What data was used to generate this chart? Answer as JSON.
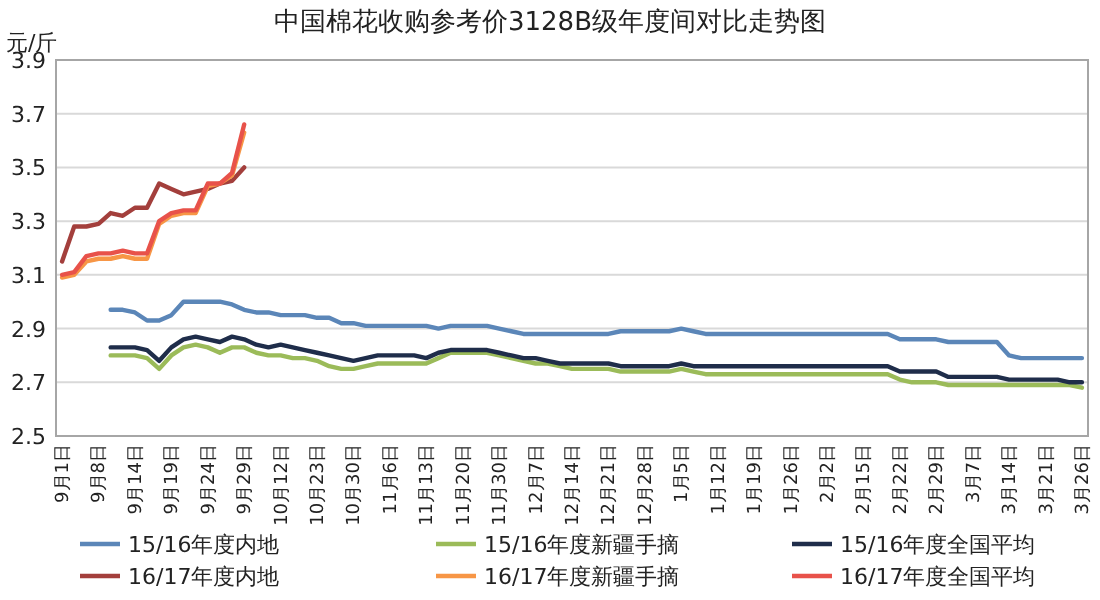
{
  "chart_data": {
    "type": "line",
    "title": "中国棉花收购参考价3128B级年度间对比走势图",
    "ylabel": "元/斤",
    "categories": [
      "9月1日",
      null,
      null,
      "9月8日",
      null,
      null,
      "9月14日",
      null,
      null,
      "9月19日",
      null,
      null,
      "9月24日",
      null,
      null,
      "9月29日",
      null,
      null,
      "10月12日",
      null,
      null,
      "10月23日",
      null,
      null,
      "10月30日",
      null,
      null,
      "11月6日",
      null,
      null,
      "11月13日",
      null,
      null,
      "11月20日",
      null,
      null,
      "11月30日",
      null,
      null,
      "12月7日",
      null,
      null,
      "12月14日",
      null,
      null,
      "12月21日",
      null,
      null,
      "12月28日",
      null,
      null,
      "1月5日",
      null,
      null,
      "1月12日",
      null,
      null,
      "1月19日",
      null,
      null,
      "1月26日",
      null,
      null,
      "2月2日",
      null,
      null,
      "2月15日",
      null,
      null,
      "2月22日",
      null,
      null,
      "2月29日",
      null,
      null,
      "3月7日",
      null,
      null,
      "3月14日",
      null,
      null,
      "3月21日",
      null,
      null,
      "3月26日"
    ],
    "ylim": [
      2.5,
      3.9
    ],
    "yticks": [
      2.5,
      2.7,
      2.9,
      3.1,
      3.3,
      3.5,
      3.7,
      3.9
    ],
    "grid": "y",
    "legend": "bottom",
    "line_style": "solid",
    "marker": "none",
    "series": [
      {
        "name": "15/16年度内地",
        "color": "#5b86b8",
        "values": [
          null,
          null,
          null,
          null,
          2.97,
          2.97,
          2.96,
          2.93,
          2.93,
          2.95,
          3.0,
          3.0,
          3.0,
          3.0,
          2.99,
          2.97,
          2.96,
          2.96,
          2.95,
          2.95,
          2.95,
          2.94,
          2.94,
          2.92,
          2.92,
          2.91,
          2.91,
          2.91,
          2.91,
          2.91,
          2.91,
          2.9,
          2.91,
          2.91,
          2.91,
          2.91,
          2.9,
          2.89,
          2.88,
          2.88,
          2.88,
          2.88,
          2.88,
          2.88,
          2.88,
          2.88,
          2.89,
          2.89,
          2.89,
          2.89,
          2.89,
          2.9,
          2.89,
          2.88,
          2.88,
          2.88,
          2.88,
          2.88,
          2.88,
          2.88,
          2.88,
          2.88,
          2.88,
          2.88,
          2.88,
          2.88,
          2.88,
          2.88,
          2.88,
          2.86,
          2.86,
          2.86,
          2.86,
          2.85,
          2.85,
          2.85,
          2.85,
          2.85,
          2.8,
          2.79,
          2.79,
          2.79,
          2.79,
          2.79,
          2.79
        ]
      },
      {
        "name": "15/16年度新疆手摘",
        "color": "#9bbb59",
        "values": [
          null,
          null,
          null,
          null,
          2.8,
          2.8,
          2.8,
          2.79,
          2.75,
          2.8,
          2.83,
          2.84,
          2.83,
          2.81,
          2.83,
          2.83,
          2.81,
          2.8,
          2.8,
          2.79,
          2.79,
          2.78,
          2.76,
          2.75,
          2.75,
          2.76,
          2.77,
          2.77,
          2.77,
          2.77,
          2.77,
          2.79,
          2.81,
          2.81,
          2.81,
          2.81,
          2.8,
          2.79,
          2.78,
          2.77,
          2.77,
          2.76,
          2.75,
          2.75,
          2.75,
          2.75,
          2.74,
          2.74,
          2.74,
          2.74,
          2.74,
          2.75,
          2.74,
          2.73,
          2.73,
          2.73,
          2.73,
          2.73,
          2.73,
          2.73,
          2.73,
          2.73,
          2.73,
          2.73,
          2.73,
          2.73,
          2.73,
          2.73,
          2.73,
          2.71,
          2.7,
          2.7,
          2.7,
          2.69,
          2.69,
          2.69,
          2.69,
          2.69,
          2.69,
          2.69,
          2.69,
          2.69,
          2.69,
          2.69,
          2.68
        ]
      },
      {
        "name": "15/16年度全国平均",
        "color": "#1f2d4a",
        "values": [
          null,
          null,
          null,
          null,
          2.83,
          2.83,
          2.83,
          2.82,
          2.78,
          2.83,
          2.86,
          2.87,
          2.86,
          2.85,
          2.87,
          2.86,
          2.84,
          2.83,
          2.84,
          2.83,
          2.82,
          2.81,
          2.8,
          2.79,
          2.78,
          2.79,
          2.8,
          2.8,
          2.8,
          2.8,
          2.79,
          2.81,
          2.82,
          2.82,
          2.82,
          2.82,
          2.81,
          2.8,
          2.79,
          2.79,
          2.78,
          2.77,
          2.77,
          2.77,
          2.77,
          2.77,
          2.76,
          2.76,
          2.76,
          2.76,
          2.76,
          2.77,
          2.76,
          2.76,
          2.76,
          2.76,
          2.76,
          2.76,
          2.76,
          2.76,
          2.76,
          2.76,
          2.76,
          2.76,
          2.76,
          2.76,
          2.76,
          2.76,
          2.76,
          2.74,
          2.74,
          2.74,
          2.74,
          2.72,
          2.72,
          2.72,
          2.72,
          2.72,
          2.71,
          2.71,
          2.71,
          2.71,
          2.71,
          2.7,
          2.7
        ]
      },
      {
        "name": "16/17年度内地",
        "color": "#a33f3c",
        "values": [
          3.15,
          3.28,
          3.28,
          3.29,
          3.33,
          3.32,
          3.35,
          3.35,
          3.44,
          3.42,
          3.4,
          3.41,
          3.42,
          3.44,
          3.45,
          3.5,
          null,
          null,
          null,
          null,
          null,
          null,
          null,
          null,
          null,
          null,
          null,
          null,
          null,
          null,
          null,
          null,
          null,
          null,
          null,
          null,
          null,
          null,
          null,
          null,
          null,
          null,
          null,
          null,
          null,
          null,
          null,
          null,
          null,
          null,
          null,
          null,
          null,
          null,
          null,
          null,
          null,
          null,
          null,
          null,
          null,
          null,
          null,
          null,
          null,
          null,
          null,
          null,
          null,
          null,
          null,
          null,
          null,
          null,
          null,
          null,
          null,
          null,
          null,
          null,
          null,
          null,
          null,
          null,
          null
        ]
      },
      {
        "name": "16/17年度新疆手摘",
        "color": "#f79646",
        "values": [
          3.09,
          3.1,
          3.15,
          3.16,
          3.16,
          3.17,
          3.16,
          3.16,
          3.29,
          3.32,
          3.33,
          3.33,
          3.43,
          3.44,
          3.47,
          3.63,
          null,
          null,
          null,
          null,
          null,
          null,
          null,
          null,
          null,
          null,
          null,
          null,
          null,
          null,
          null,
          null,
          null,
          null,
          null,
          null,
          null,
          null,
          null,
          null,
          null,
          null,
          null,
          null,
          null,
          null,
          null,
          null,
          null,
          null,
          null,
          null,
          null,
          null,
          null,
          null,
          null,
          null,
          null,
          null,
          null,
          null,
          null,
          null,
          null,
          null,
          null,
          null,
          null,
          null,
          null,
          null,
          null,
          null,
          null,
          null,
          null,
          null,
          null,
          null,
          null,
          null,
          null,
          null,
          null
        ]
      },
      {
        "name": "16/17年度全国平均",
        "color": "#e8524a",
        "values": [
          3.1,
          3.11,
          3.17,
          3.18,
          3.18,
          3.19,
          3.18,
          3.18,
          3.3,
          3.33,
          3.34,
          3.34,
          3.44,
          3.44,
          3.48,
          3.66,
          null,
          null,
          null,
          null,
          null,
          null,
          null,
          null,
          null,
          null,
          null,
          null,
          null,
          null,
          null,
          null,
          null,
          null,
          null,
          null,
          null,
          null,
          null,
          null,
          null,
          null,
          null,
          null,
          null,
          null,
          null,
          null,
          null,
          null,
          null,
          null,
          null,
          null,
          null,
          null,
          null,
          null,
          null,
          null,
          null,
          null,
          null,
          null,
          null,
          null,
          null,
          null,
          null,
          null,
          null,
          null,
          null,
          null,
          null,
          null,
          null,
          null,
          null,
          null,
          null,
          null,
          null,
          null,
          null
        ]
      }
    ]
  }
}
